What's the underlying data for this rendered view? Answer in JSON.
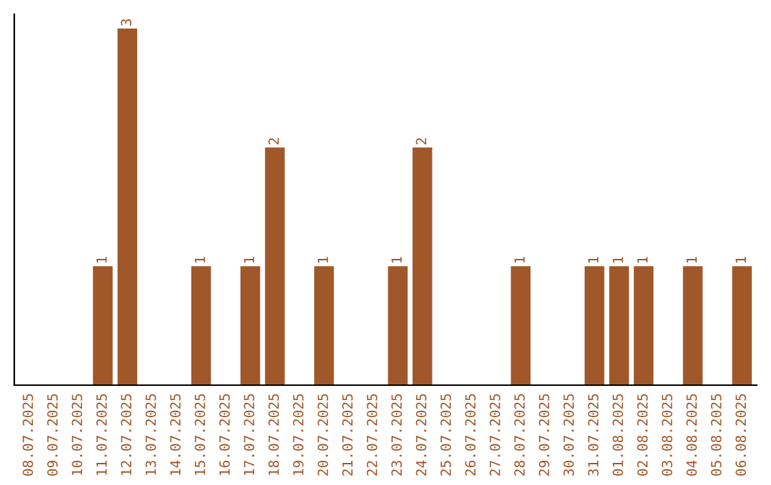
{
  "chart_data": {
    "type": "bar",
    "categories": [
      "08.07.2025",
      "09.07.2025",
      "10.07.2025",
      "11.07.2025",
      "12.07.2025",
      "13.07.2025",
      "14.07.2025",
      "15.07.2025",
      "16.07.2025",
      "17.07.2025",
      "18.07.2025",
      "19.07.2025",
      "20.07.2025",
      "21.07.2025",
      "22.07.2025",
      "23.07.2025",
      "24.07.2025",
      "25.07.2025",
      "26.07.2025",
      "27.07.2025",
      "28.07.2025",
      "29.07.2025",
      "30.07.2025",
      "31.07.2025",
      "01.08.2025",
      "02.08.2025",
      "03.08.2025",
      "04.08.2025",
      "05.08.2025",
      "06.08.2025"
    ],
    "values": [
      0,
      0,
      0,
      1,
      3,
      0,
      0,
      1,
      0,
      1,
      2,
      0,
      1,
      0,
      0,
      1,
      2,
      0,
      0,
      0,
      1,
      0,
      0,
      1,
      1,
      1,
      0,
      1,
      0,
      1
    ],
    "value_labels": [
      null,
      null,
      null,
      "1",
      "3",
      null,
      null,
      "1",
      null,
      "1",
      "2",
      null,
      "1",
      null,
      null,
      "1",
      "2",
      null,
      null,
      null,
      "1",
      null,
      null,
      "1",
      "1",
      "1",
      null,
      "1",
      null,
      "1"
    ],
    "color": "#a0582a",
    "tick_labels": "x",
    "grid": false,
    "legend": false
  }
}
